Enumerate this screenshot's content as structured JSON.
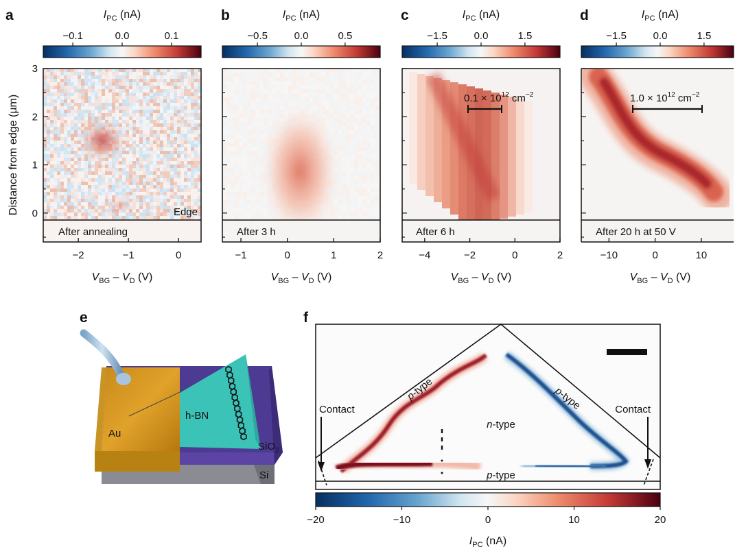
{
  "figure": {
    "colormap": {
      "negative": "#2166ac",
      "mid": "#f7f7f7",
      "positive": "#b2182b",
      "dark": "#67001f"
    },
    "shared_x_label": {
      "main": "V",
      "sub1": "BG",
      "dash": " – ",
      "sub2": "D",
      "unit": " (V)"
    },
    "colorbar_label": {
      "main": "I",
      "sub": "PC",
      "unit": " (nA)"
    },
    "y_axis": {
      "label": "Distance from edge (µm)",
      "ticks": [
        "0",
        "1",
        "2",
        "3"
      ],
      "range": [
        -0.6,
        3
      ]
    },
    "edge_label": "Edge",
    "panels": [
      {
        "letter": "a",
        "caption": "After annealing",
        "cbar_ticks": [
          "−0.1",
          "0.0",
          "0.1"
        ],
        "cbar_range": [
          -0.16,
          0.16
        ],
        "cbar_tick_values": [
          -0.1,
          0.0,
          0.1
        ],
        "x_range": [
          -2.7,
          0.45
        ],
        "x_ticks": [
          "−2",
          "−1",
          "0"
        ],
        "x_tick_values": [
          -2,
          -1,
          0
        ]
      },
      {
        "letter": "b",
        "caption": "After 3 h",
        "cbar_ticks": [
          "−0.5",
          "0.0",
          "0.5"
        ],
        "cbar_range": [
          -0.9,
          0.9
        ],
        "cbar_tick_values": [
          -0.5,
          0.0,
          0.5
        ],
        "x_range": [
          -1.4,
          2.0
        ],
        "x_ticks": [
          "−1",
          "0",
          "1",
          "2"
        ],
        "x_tick_values": [
          -1,
          0,
          1,
          2
        ]
      },
      {
        "letter": "c",
        "caption": "After 6 h",
        "cbar_ticks": [
          "−1.5",
          "0.0",
          "1.5"
        ],
        "cbar_range": [
          -2.7,
          2.7
        ],
        "cbar_tick_values": [
          -1.5,
          0.0,
          1.5
        ],
        "x_range": [
          -5.0,
          2.0
        ],
        "x_ticks": [
          "−4",
          "−2",
          "0",
          "2"
        ],
        "x_tick_values": [
          -4,
          -2,
          0,
          2
        ],
        "scale_bar": {
          "mantissa": "0.1",
          "times": " × 10",
          "exp": "12",
          "unit": " cm",
          "unit_exp": "−2"
        }
      },
      {
        "letter": "d",
        "caption": "After 20 h at 50 V",
        "cbar_ticks": [
          "−1.5",
          "0.0",
          "1.5"
        ],
        "cbar_range": [
          -2.7,
          2.7
        ],
        "cbar_tick_values": [
          -1.5,
          0.0,
          1.5
        ],
        "x_range": [
          -16,
          17
        ],
        "x_ticks": [
          "−10",
          "0",
          "10"
        ],
        "x_tick_values": [
          -10,
          0,
          10
        ],
        "scale_bar": {
          "mantissa": "1.0",
          "times": " × 10",
          "exp": "12",
          "unit": " cm",
          "unit_exp": "−2"
        }
      }
    ],
    "panel_e": {
      "letter": "e",
      "labels": {
        "au": "Au",
        "hbn": "h-BN",
        "sio2_main": "SiO",
        "sio2_sub": "2",
        "si": "Si"
      }
    },
    "panel_f": {
      "letter": "f",
      "labels": {
        "contact_left": "Contact",
        "contact_right": "Contact",
        "p_type_left": "p",
        "p_type_right": "p",
        "p_type_bottom": "p",
        "type_suffix": "-type",
        "n_type": "n",
        "n_type_suffix": "-type"
      },
      "colorbar": {
        "ticks": [
          "−20",
          "−10",
          "0",
          "10",
          "20"
        ],
        "tick_values": [
          -20,
          -10,
          0,
          10,
          20
        ],
        "range": [
          -20,
          20
        ]
      }
    }
  }
}
